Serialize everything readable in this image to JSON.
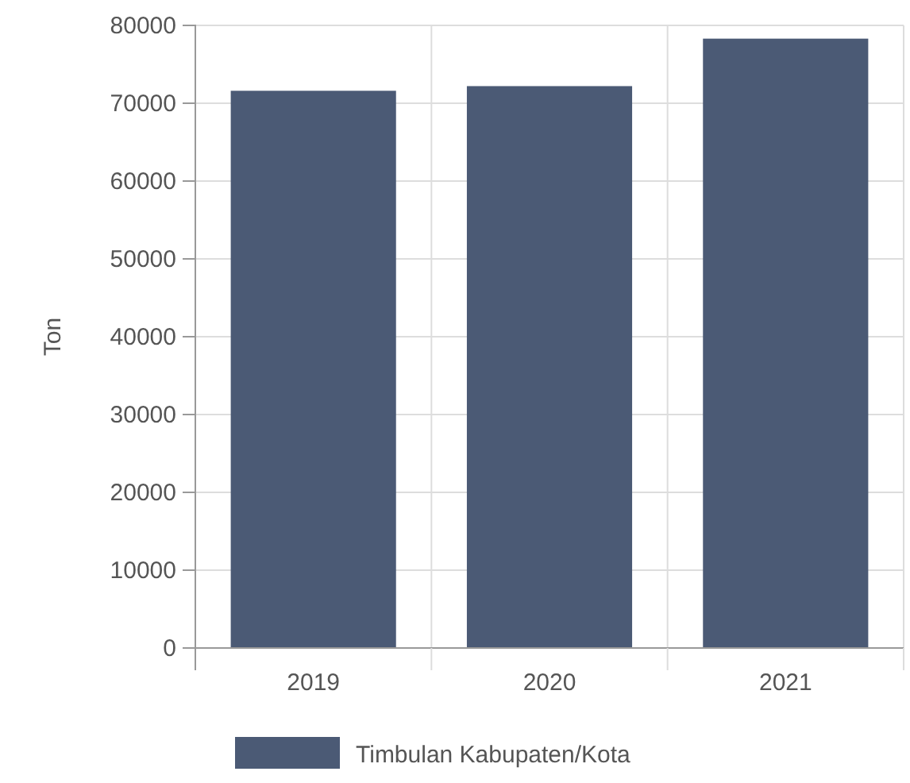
{
  "chart_data": {
    "type": "bar",
    "ylabel": "Ton",
    "categories": [
      "2019",
      "2020",
      "2021"
    ],
    "series": [
      {
        "name": "Timbulan Kabupaten/Kota",
        "color": "#4b5a75",
        "values": [
          71600,
          72200,
          78300
        ]
      }
    ],
    "ylim": [
      0,
      80000
    ],
    "yticks": [
      0,
      10000,
      20000,
      30000,
      40000,
      50000,
      60000,
      70000,
      80000
    ],
    "grid": true,
    "legend": "bottom"
  }
}
